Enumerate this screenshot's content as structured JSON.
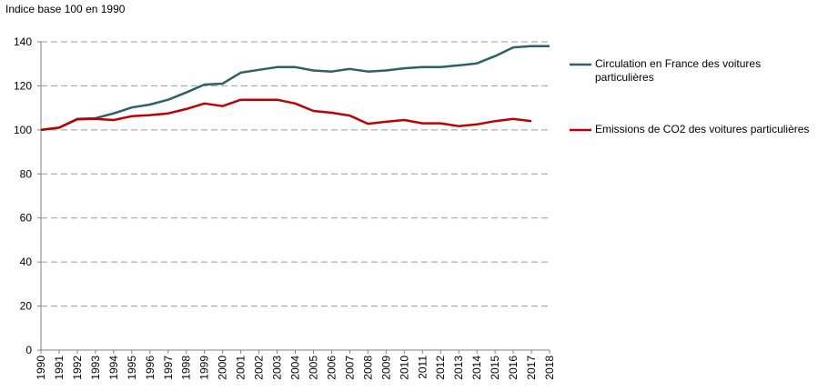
{
  "chart_data": {
    "type": "line",
    "title": "Indice base 100 en 1990",
    "categories": [
      "1990",
      "1991",
      "1992",
      "1993",
      "1994",
      "1995",
      "1996",
      "1997",
      "1998",
      "1999",
      "2000",
      "2001",
      "2002",
      "2003",
      "2004",
      "2005",
      "2006",
      "2007",
      "2008",
      "2009",
      "2010",
      "2011",
      "2012",
      "2013",
      "2014",
      "2015",
      "2016",
      "2017",
      "2018"
    ],
    "series": [
      {
        "name": "Circulation en France des voitures particulières",
        "color": "#2e5f6b",
        "values": [
          100,
          101,
          105,
          105.3,
          107.5,
          110.2,
          111.5,
          113.7,
          117,
          120.6,
          121,
          126,
          127.3,
          128.5,
          128.5,
          127,
          126.5,
          127.7,
          126.5,
          127,
          128,
          128.5,
          128.5,
          129.3,
          130.2,
          133.5,
          137.5,
          138,
          138
        ]
      },
      {
        "name": "Emissions de CO2 des voitures particulières",
        "color": "#c00000",
        "values": [
          100,
          101,
          104.8,
          105,
          104.5,
          106.2,
          106.7,
          107.5,
          109.5,
          112,
          110.8,
          113.7,
          113.7,
          113.7,
          112,
          108.6,
          107.8,
          106.5,
          102.8,
          103.7,
          104.5,
          103,
          103,
          101.7,
          102.5,
          104,
          105,
          104,
          null
        ]
      }
    ],
    "ylim": [
      0,
      140
    ],
    "yticks": [
      0,
      20,
      40,
      60,
      80,
      100,
      120,
      140
    ],
    "grid": true,
    "legend": "right"
  }
}
